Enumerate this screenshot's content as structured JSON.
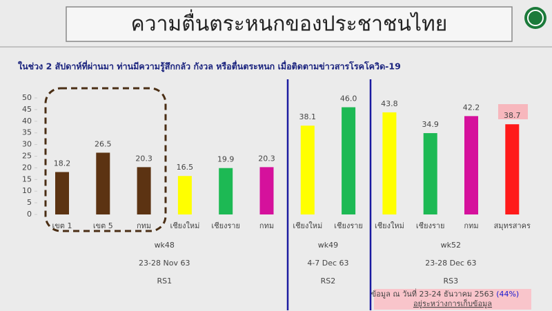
{
  "chart_data": {
    "type": "bar",
    "title": "ความตื่นตระหนกของประชาชนไทย",
    "subtitle": "ในช่วง 2  สัปดาห์ที่ผ่านมา ท่านมีความรู้สึกกลัว กังวล หรือตื่นตระหนก เมื่อติดตามข่าวสารโรคโควิด-19",
    "categories": [
      "เขต 1",
      "เขต 5",
      "กทม",
      "เชียงใหม่",
      "เชียงราย",
      "กทม",
      "เชียงใหม่",
      "เชียงราย",
      "เชียงใหม่",
      "เชียงราย",
      "กทม",
      "สมุทรสาคร"
    ],
    "values": [
      18.2,
      26.5,
      20.3,
      16.5,
      19.9,
      20.3,
      38.1,
      46.0,
      43.8,
      34.9,
      42.2,
      38.7
    ],
    "value_labels": [
      "18.2",
      "26.5",
      "20.3",
      "16.5",
      "19.9",
      "20.3",
      "38.1",
      "46.0",
      "43.8",
      "34.9",
      "42.2",
      "38.7"
    ],
    "colors": [
      "#5c3312",
      "#5c3312",
      "#5c3312",
      "#ffff00",
      "#1db954",
      "#d5119c",
      "#ffff00",
      "#1db954",
      "#ffff00",
      "#1db954",
      "#d5119c",
      "#ff1a1a"
    ],
    "ylim": [
      0,
      50
    ],
    "yticks": [
      0,
      5,
      10,
      15,
      20,
      25,
      30,
      35,
      40,
      45,
      50
    ],
    "groups": [
      {
        "week": "wk48",
        "dates": "23-28 Nov 63",
        "region": "RS1"
      },
      {
        "week": "wk49",
        "dates": "4-7 Dec 63",
        "region": "RS2"
      },
      {
        "week": "wk52",
        "dates": "23-28 Dec 63",
        "region": "RS3"
      }
    ],
    "note": "ข้อมูล ณ วันที่ 23-24 ธันวาคม 2563",
    "note_highlight": "(44%)",
    "note_status": "อยู่ระหว่างการเก็บข้อมูล"
  }
}
